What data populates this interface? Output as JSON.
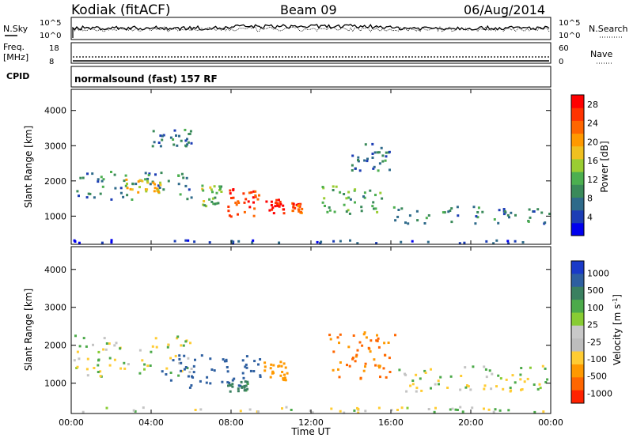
{
  "header": {
    "station": "Kodiak (fitACF)",
    "beam": "Beam 09",
    "date": "06/Aug/2014"
  },
  "strips": {
    "nsky_label": "N.Sky",
    "nsky_ticks": [
      "10^5",
      "10^0"
    ],
    "nsearch_label": "N.Search",
    "freq_label_1": "Freq.",
    "freq_label_2": "[MHz]",
    "freq_ticks": [
      "18",
      "8"
    ],
    "nave_label": "Nave",
    "nave_ticks": [
      "60",
      "0"
    ],
    "cpid_label": "CPID",
    "cpid_text": "normalsound (fast) 157 RF"
  },
  "colors": {
    "power_scale": [
      "#0000ee",
      "#1c3db5",
      "#2e6a8a",
      "#3a8a5a",
      "#4caf50",
      "#9acd32",
      "#f0c020",
      "#ff9900",
      "#ff6600",
      "#ff3300",
      "#ff0000"
    ],
    "velocity_scale": [
      "#1a3ac8",
      "#2e5fa0",
      "#3a8060",
      "#4caa4a",
      "#88cc33",
      "#c8c8c8",
      "#bdbdbd",
      "#ffcc33",
      "#ff9900",
      "#ff6600",
      "#ff2200"
    ]
  },
  "chart_data": [
    {
      "type": "heatmap",
      "panel": "power",
      "ylabel": "Slant Range [km]",
      "yticks": [
        "1000",
        "2000",
        "3000",
        "4000"
      ],
      "ylim": [
        200,
        4600
      ],
      "xlim_hours": [
        0,
        24
      ],
      "colorbar_label": "Power [dB]",
      "colorbar_ticks": [
        "4",
        "8",
        "12",
        "16",
        "20",
        "24",
        "28"
      ],
      "colorbar_range": [
        0,
        30
      ],
      "features": [
        {
          "t_start": 0.1,
          "t_end": 24,
          "r_min": 250,
          "r_max": 350,
          "level": 4
        },
        {
          "t_start": 0.1,
          "t_end": 6,
          "r_min": 1500,
          "r_max": 2300,
          "level": 8
        },
        {
          "t_start": 2.5,
          "t_end": 4.5,
          "r_min": 1700,
          "r_max": 2100,
          "level": 18
        },
        {
          "t_start": 6.5,
          "t_end": 7.5,
          "r_min": 1300,
          "r_max": 1900,
          "level": 14
        },
        {
          "t_start": 7.6,
          "t_end": 9.4,
          "r_min": 1000,
          "r_max": 1900,
          "level": 26
        },
        {
          "t_start": 9.7,
          "t_end": 10.6,
          "r_min": 1100,
          "r_max": 1500,
          "level": 28
        },
        {
          "t_start": 11,
          "t_end": 11.5,
          "r_min": 1100,
          "r_max": 1400,
          "level": 24
        },
        {
          "t_start": 12.5,
          "t_end": 15.5,
          "r_min": 1100,
          "r_max": 1900,
          "level": 12
        },
        {
          "t_start": 14,
          "t_end": 16,
          "r_min": 2300,
          "r_max": 3100,
          "level": 8
        },
        {
          "t_start": 4,
          "t_end": 6,
          "r_min": 3000,
          "r_max": 3500,
          "level": 8
        },
        {
          "t_start": 16,
          "t_end": 24,
          "r_min": 800,
          "r_max": 1300,
          "level": 8
        }
      ]
    },
    {
      "type": "heatmap",
      "panel": "velocity",
      "ylabel": "Slant Range [km]",
      "yticks": [
        "1000",
        "2000",
        "3000",
        "4000"
      ],
      "ylim": [
        200,
        4600
      ],
      "xlabel": "Time UT",
      "xticks": [
        "00:00",
        "04:00",
        "08:00",
        "12:00",
        "16:00",
        "20:00",
        "00:00"
      ],
      "xlim_hours": [
        0,
        24
      ],
      "colorbar_label": "Velocity [m s^-1]",
      "colorbar_ticks": [
        "1000",
        "500",
        "100",
        "25",
        "-25",
        "-100",
        "-500",
        "-1000"
      ],
      "features": [
        {
          "t_start": 0.1,
          "t_end": 24,
          "r_min": 250,
          "r_max": 400,
          "velocity": 0
        },
        {
          "t_start": 0.1,
          "t_end": 6,
          "r_min": 1200,
          "r_max": 2300,
          "velocity": 0
        },
        {
          "t_start": 4.5,
          "t_end": 9.5,
          "r_min": 900,
          "r_max": 1800,
          "velocity": 400
        },
        {
          "t_start": 7.8,
          "t_end": 8.8,
          "r_min": 800,
          "r_max": 1100,
          "velocity": 150
        },
        {
          "t_start": 9.5,
          "t_end": 10.8,
          "r_min": 1100,
          "r_max": 1600,
          "velocity": -200
        },
        {
          "t_start": 12.8,
          "t_end": 16.2,
          "r_min": 1100,
          "r_max": 2400,
          "velocity": -300
        },
        {
          "t_start": 16,
          "t_end": 24,
          "r_min": 800,
          "r_max": 1500,
          "velocity": 0
        }
      ]
    }
  ]
}
